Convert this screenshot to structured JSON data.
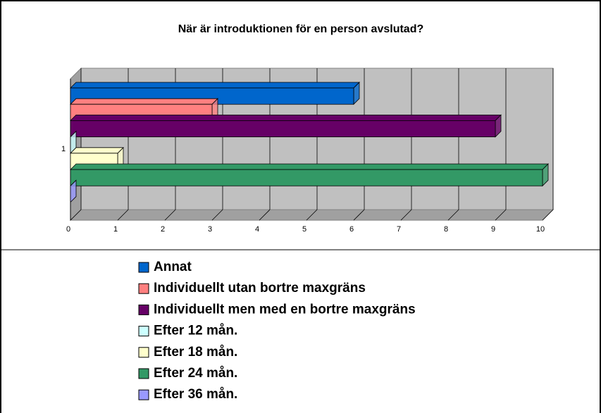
{
  "chart_data": {
    "type": "bar3d_horizontal",
    "title": "När är introduktionen för en person avslutad?",
    "categories": [
      "1"
    ],
    "series": [
      {
        "name": "Annat",
        "color": "#0066cc",
        "values": [
          6
        ]
      },
      {
        "name": "Individuellt utan bortre maxgräns",
        "color": "#ff8080",
        "values": [
          3
        ]
      },
      {
        "name": "Individuellt men med en bortre maxgräns",
        "color": "#660066",
        "values": [
          9
        ]
      },
      {
        "name": "Efter 12 mån.",
        "color": "#ccffff",
        "values": [
          0
        ]
      },
      {
        "name": "Efter 18 mån.",
        "color": "#ffffcc",
        "values": [
          1
        ]
      },
      {
        "name": "Efter 24 mån.",
        "color": "#339966",
        "values": [
          10
        ]
      },
      {
        "name": "Efter 36 mån.",
        "color": "#9999ff",
        "values": [
          0
        ]
      }
    ],
    "xlim": [
      0,
      10
    ],
    "xticks": [
      0,
      1,
      2,
      3,
      4,
      5,
      6,
      7,
      8,
      9,
      10
    ],
    "grid": true
  }
}
